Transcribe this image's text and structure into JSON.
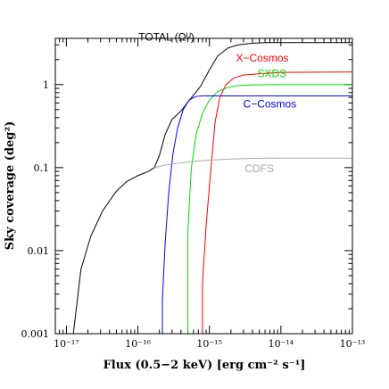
{
  "chart_data": {
    "type": "line",
    "xlabel": "Flux (0.5−2 keV) [erg cm⁻² s⁻¹]",
    "ylabel": "Sky coverage (deg²)",
    "xscale": "log",
    "yscale": "log",
    "xlim": [
      7e-18,
      1e-13
    ],
    "ylim": [
      0.001,
      3.6
    ],
    "x_ticks": [
      {
        "value": 1e-17,
        "label": "10⁻¹⁷"
      },
      {
        "value": 1e-16,
        "label": "10⁻¹⁶"
      },
      {
        "value": 1e-15,
        "label": "10⁻¹⁵"
      },
      {
        "value": 1e-14,
        "label": "10⁻¹⁴"
      },
      {
        "value": 1e-13,
        "label": "10⁻¹³"
      }
    ],
    "y_ticks": [
      {
        "value": 0.001,
        "label": "0.001"
      },
      {
        "value": 0.01,
        "label": "0.01"
      },
      {
        "value": 0.1,
        "label": "0.1"
      },
      {
        "value": 1,
        "label": "1"
      }
    ],
    "grid": false,
    "legend": "labels placed next to curves",
    "series": [
      {
        "name": "TOTAL (Ωᵁ)",
        "color": "#000000",
        "x": [
          1.25e-17,
          1.6e-17,
          2.2e-17,
          3.2e-17,
          5e-17,
          7e-17,
          1e-16,
          1.4e-16,
          1.7e-16,
          2e-16,
          2.4e-16,
          3e-16,
          4e-16,
          5.5e-16,
          7.5e-16,
          1e-15,
          1.3e-15,
          1.8e-15,
          2.5e-15,
          4e-15,
          6.5e-15,
          1e-14,
          2e-14,
          1e-13
        ],
        "y": [
          0.001,
          0.006,
          0.015,
          0.03,
          0.052,
          0.068,
          0.08,
          0.09,
          0.1,
          0.14,
          0.25,
          0.38,
          0.48,
          0.68,
          0.95,
          1.5,
          2.2,
          2.75,
          3.0,
          3.15,
          3.2,
          3.2,
          3.2,
          3.2
        ]
      },
      {
        "name": "X−Cosmos",
        "color": "#ff0000",
        "x": [
          8e-16,
          8e-16,
          9e-16,
          1e-15,
          1.1e-15,
          1.2e-15,
          1.4e-15,
          1.7e-15,
          2.2e-15,
          3e-15,
          5e-15,
          1e-14,
          1e-13
        ],
        "y": [
          0.001,
          0.004,
          0.02,
          0.06,
          0.15,
          0.35,
          0.7,
          1.0,
          1.2,
          1.3,
          1.35,
          1.4,
          1.42
        ]
      },
      {
        "name": "SXDS",
        "color": "#00dd00",
        "x": [
          5e-16,
          5e-16,
          5.3e-16,
          5.6e-16,
          6.5e-16,
          8e-16,
          1e-15,
          1.3e-15,
          1.8e-15,
          2.5e-15,
          4e-15,
          1e-14,
          1e-13
        ],
        "y": [
          0.001,
          0.017,
          0.045,
          0.1,
          0.25,
          0.45,
          0.65,
          0.82,
          0.92,
          0.97,
          0.99,
          1.0,
          1.0
        ]
      },
      {
        "name": "C−Cosmos",
        "color": "#0000ff",
        "x": [
          2.2e-16,
          2.2e-16,
          2.4e-16,
          2.7e-16,
          3.1e-16,
          3.6e-16,
          4.3e-16,
          5.2e-16,
          6.5e-16,
          8e-16,
          1e-13
        ],
        "y": [
          0.001,
          0.0025,
          0.012,
          0.05,
          0.15,
          0.3,
          0.5,
          0.65,
          0.72,
          0.73,
          0.73
        ]
      },
      {
        "name": "CDFS",
        "color": "#aaaaaa",
        "x": [
          1.7e-16,
          2.5e-16,
          4e-16,
          6e-16,
          1e-15,
          2e-15,
          4e-15,
          1e-14,
          3e-14,
          1e-13
        ],
        "y": [
          0.1,
          0.108,
          0.114,
          0.119,
          0.123,
          0.127,
          0.129,
          0.13,
          0.13,
          0.13
        ]
      }
    ]
  }
}
